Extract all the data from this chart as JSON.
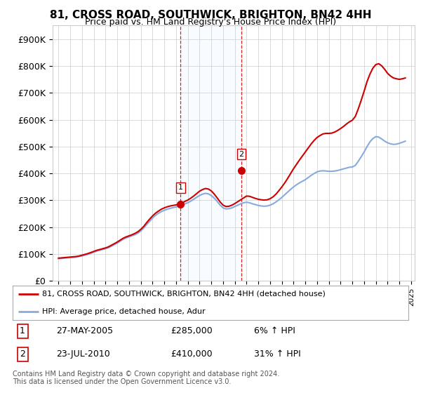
{
  "title": "81, CROSS ROAD, SOUTHWICK, BRIGHTON, BN42 4HH",
  "subtitle": "Price paid vs. HM Land Registry's House Price Index (HPI)",
  "ylabel_ticks": [
    "£0",
    "£100K",
    "£200K",
    "£300K",
    "£400K",
    "£500K",
    "£600K",
    "£700K",
    "£800K",
    "£900K"
  ],
  "ytick_vals": [
    0,
    100000,
    200000,
    300000,
    400000,
    500000,
    600000,
    700000,
    800000,
    900000
  ],
  "ylim": [
    0,
    950000
  ],
  "xlim_start": 1994.5,
  "xlim_end": 2025.3,
  "line1_color": "#cc0000",
  "line2_color": "#88aadd",
  "marker_color": "#cc0000",
  "vline_color": "#cc0000",
  "shade_color": "#ddeeff",
  "transaction1_x": 2005.39,
  "transaction1_y": 285000,
  "transaction2_x": 2010.55,
  "transaction2_y": 410000,
  "legend1_label": "81, CROSS ROAD, SOUTHWICK, BRIGHTON, BN42 4HH (detached house)",
  "legend2_label": "HPI: Average price, detached house, Adur",
  "footnote": "Contains HM Land Registry data © Crown copyright and database right 2024.\nThis data is licensed under the Open Government Licence v3.0.",
  "background_color": "#ffffff",
  "grid_color": "#cccccc",
  "years_hpi": [
    1995.0,
    1995.25,
    1995.5,
    1995.75,
    1996.0,
    1996.25,
    1996.5,
    1996.75,
    1997.0,
    1997.25,
    1997.5,
    1997.75,
    1998.0,
    1998.25,
    1998.5,
    1998.75,
    1999.0,
    1999.25,
    1999.5,
    1999.75,
    2000.0,
    2000.25,
    2000.5,
    2000.75,
    2001.0,
    2001.25,
    2001.5,
    2001.75,
    2002.0,
    2002.25,
    2002.5,
    2002.75,
    2003.0,
    2003.25,
    2003.5,
    2003.75,
    2004.0,
    2004.25,
    2004.5,
    2004.75,
    2005.0,
    2005.25,
    2005.5,
    2005.75,
    2006.0,
    2006.25,
    2006.5,
    2006.75,
    2007.0,
    2007.25,
    2007.5,
    2007.75,
    2008.0,
    2008.25,
    2008.5,
    2008.75,
    2009.0,
    2009.25,
    2009.5,
    2009.75,
    2010.0,
    2010.25,
    2010.5,
    2010.75,
    2011.0,
    2011.25,
    2011.5,
    2011.75,
    2012.0,
    2012.25,
    2012.5,
    2012.75,
    2013.0,
    2013.25,
    2013.5,
    2013.75,
    2014.0,
    2014.25,
    2014.5,
    2014.75,
    2015.0,
    2015.25,
    2015.5,
    2015.75,
    2016.0,
    2016.25,
    2016.5,
    2016.75,
    2017.0,
    2017.25,
    2017.5,
    2017.75,
    2018.0,
    2018.25,
    2018.5,
    2018.75,
    2019.0,
    2019.25,
    2019.5,
    2019.75,
    2020.0,
    2020.25,
    2020.5,
    2020.75,
    2021.0,
    2021.25,
    2021.5,
    2021.75,
    2022.0,
    2022.25,
    2022.5,
    2022.75,
    2023.0,
    2023.25,
    2023.5,
    2023.75,
    2024.0,
    2024.25,
    2024.5
  ],
  "hpi_values": [
    83000,
    84000,
    85000,
    86000,
    87000,
    88000,
    89000,
    91000,
    93000,
    96000,
    99000,
    103000,
    107000,
    111000,
    114000,
    117000,
    120000,
    124000,
    129000,
    135000,
    141000,
    148000,
    155000,
    160000,
    164000,
    168000,
    172000,
    178000,
    186000,
    197000,
    210000,
    222000,
    234000,
    244000,
    252000,
    258000,
    263000,
    267000,
    270000,
    273000,
    275000,
    278000,
    282000,
    287000,
    291000,
    297000,
    304000,
    311000,
    318000,
    323000,
    326000,
    324000,
    318000,
    308000,
    296000,
    282000,
    272000,
    268000,
    269000,
    272000,
    277000,
    282000,
    287000,
    291000,
    293000,
    291000,
    287000,
    284000,
    281000,
    279000,
    278000,
    279000,
    282000,
    287000,
    294000,
    302000,
    311000,
    321000,
    331000,
    341000,
    350000,
    358000,
    365000,
    371000,
    377000,
    385000,
    393000,
    400000,
    406000,
    409000,
    410000,
    409000,
    408000,
    408000,
    409000,
    411000,
    414000,
    417000,
    420000,
    423000,
    424000,
    430000,
    445000,
    462000,
    480000,
    500000,
    518000,
    530000,
    537000,
    535000,
    528000,
    520000,
    514000,
    510000,
    508000,
    509000,
    512000,
    516000,
    520000
  ],
  "prop_values": [
    85000,
    86000,
    87000,
    88000,
    89000,
    90000,
    91000,
    93000,
    96000,
    99000,
    102000,
    106000,
    110000,
    114000,
    117000,
    120000,
    123000,
    127000,
    133000,
    139000,
    145000,
    152000,
    159000,
    164000,
    168000,
    172000,
    177000,
    183000,
    192000,
    203000,
    217000,
    230000,
    242000,
    252000,
    260000,
    267000,
    272000,
    276000,
    279000,
    281000,
    283000,
    285000,
    290000,
    296000,
    301000,
    308000,
    316000,
    325000,
    334000,
    340000,
    344000,
    342000,
    335000,
    323000,
    309000,
    294000,
    282000,
    277000,
    278000,
    282000,
    288000,
    295000,
    302000,
    309000,
    316000,
    315000,
    311000,
    307000,
    304000,
    302000,
    301000,
    302000,
    306000,
    313000,
    323000,
    336000,
    350000,
    365000,
    382000,
    400000,
    418000,
    434000,
    450000,
    465000,
    480000,
    495000,
    510000,
    523000,
    534000,
    541000,
    547000,
    549000,
    549000,
    550000,
    554000,
    560000,
    567000,
    575000,
    584000,
    592000,
    598000,
    612000,
    640000,
    672000,
    706000,
    742000,
    770000,
    792000,
    805000,
    808000,
    800000,
    787000,
    772000,
    762000,
    755000,
    752000,
    750000,
    752000,
    755000
  ]
}
